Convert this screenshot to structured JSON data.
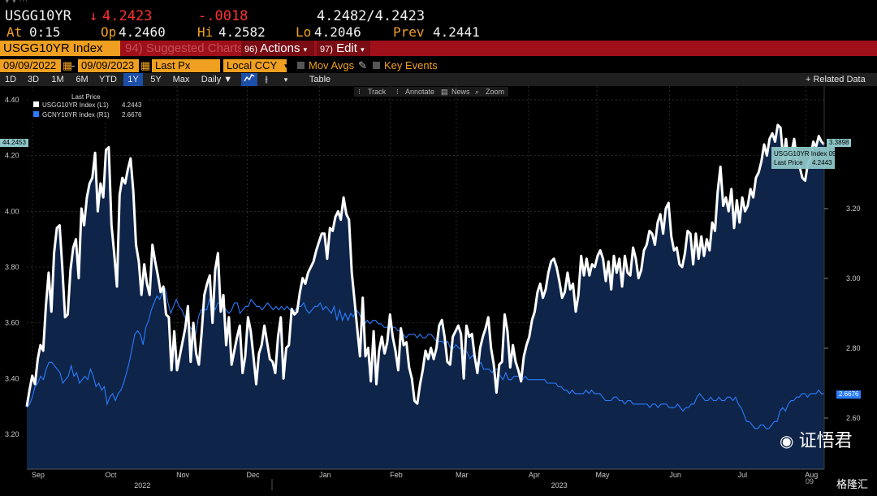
{
  "quote": {
    "ticker": "USGG10YR",
    "last_arrow": "↓",
    "last": "4.2423",
    "change": "-.0018",
    "bid_ask": "4.2482/4.2423",
    "at_label": "At",
    "at_value": "0:15",
    "open_label": "Op",
    "open_value": "4.2460",
    "high_label": "Hi",
    "high_value": "4.2582",
    "low_label": "Lo",
    "low_value": "4.2046",
    "prev_label": "Prev",
    "prev_value": "4.2441"
  },
  "menu": {
    "security": "USGG10YR Index",
    "suggested": "94) Suggested Charts",
    "actions_num": "96)",
    "actions": "Actions",
    "edit_num": "97)",
    "edit": "Edit"
  },
  "options": {
    "start_date": "09/09/2022",
    "end_date": "09/09/2023",
    "field": "Last Px",
    "currency": "Local CCY",
    "mov_avgs": "Mov Avgs",
    "key_events": "Key Events"
  },
  "range": {
    "buttons": [
      "1D",
      "3D",
      "1M",
      "6M",
      "YTD",
      "1Y",
      "5Y",
      "Max",
      "Daily ▼"
    ],
    "active": "1Y",
    "table": "Table",
    "related": "+ Related Data"
  },
  "toolbar": {
    "track": "Track",
    "annotate": "Annotate",
    "news": "News",
    "zoom": "Zoom"
  },
  "colors": {
    "amber": "#f0a020",
    "menu_red": "#a0101a",
    "series_white": "#ffffff",
    "series_blue": "#2a7cff",
    "area_fill": "#0e2448"
  },
  "chart_data": {
    "type": "line",
    "legend_title": "Last Price",
    "series": [
      {
        "name": "USGG10YR Index (L1)",
        "last_value": "4.2443",
        "axis": "left",
        "values": [
          3.3,
          3.36,
          3.41,
          3.38,
          3.47,
          3.52,
          3.5,
          3.66,
          3.78,
          3.64,
          3.85,
          3.94,
          3.95,
          3.8,
          3.62,
          3.63,
          3.79,
          3.87,
          3.9,
          3.76,
          4.01,
          3.95,
          4.05,
          4.1,
          4.12,
          4.21,
          4.0,
          4.1,
          4.05,
          4.22,
          4.23,
          3.95,
          3.85,
          3.73,
          4.06,
          4.12,
          4.1,
          4.15,
          4.19,
          4.07,
          3.88,
          3.82,
          3.7,
          3.81,
          3.74,
          3.7,
          3.88,
          3.82,
          3.77,
          3.71,
          3.73,
          3.63,
          3.62,
          3.43,
          3.57,
          3.43,
          3.48,
          3.53,
          3.58,
          3.66,
          3.46,
          3.6,
          3.49,
          3.45,
          3.56,
          3.7,
          3.74,
          3.77,
          3.6,
          3.79,
          3.85,
          3.64,
          3.7,
          3.52,
          3.62,
          3.45,
          3.5,
          3.55,
          3.59,
          3.42,
          3.48,
          3.62,
          3.57,
          3.48,
          3.38,
          3.49,
          3.52,
          3.59,
          3.53,
          3.47,
          3.46,
          3.42,
          3.55,
          3.62,
          3.4,
          3.51,
          3.52,
          3.65,
          3.63,
          3.64,
          3.71,
          3.76,
          3.74,
          3.78,
          3.8,
          3.82,
          3.86,
          3.89,
          3.92,
          3.92,
          3.83,
          3.94,
          3.93,
          3.98,
          4.0,
          3.97,
          4.05,
          3.99,
          3.97,
          3.78,
          3.68,
          3.58,
          3.48,
          3.69,
          3.48,
          3.51,
          3.39,
          3.57,
          3.38,
          3.5,
          3.55,
          3.49,
          3.53,
          3.63,
          3.55,
          3.5,
          3.43,
          3.58,
          3.52,
          3.53,
          3.44,
          3.4,
          3.32,
          3.31,
          3.38,
          3.43,
          3.5,
          3.47,
          3.51,
          3.47,
          3.51,
          3.59,
          3.61,
          3.55,
          3.46,
          3.45,
          3.55,
          3.57,
          3.59,
          3.56,
          3.4,
          3.59,
          3.55,
          3.56,
          3.48,
          3.42,
          3.51,
          3.55,
          3.58,
          3.62,
          3.51,
          3.45,
          3.35,
          3.45,
          3.46,
          3.63,
          3.57,
          3.44,
          3.52,
          3.46,
          3.43,
          3.39,
          3.48,
          3.52,
          3.55,
          3.61,
          3.64,
          3.71,
          3.74,
          3.69,
          3.72,
          3.78,
          3.82,
          3.83,
          3.8,
          3.75,
          3.69,
          3.71,
          3.78,
          3.72,
          3.74,
          3.64,
          3.7,
          3.84,
          3.77,
          3.83,
          3.77,
          3.81,
          3.8,
          3.84,
          3.86,
          3.83,
          3.75,
          3.82,
          3.72,
          3.84,
          3.78,
          3.83,
          3.73,
          3.84,
          3.78,
          3.77,
          3.87,
          3.83,
          3.76,
          3.79,
          3.86,
          3.88,
          3.93,
          3.92,
          3.88,
          3.96,
          3.99,
          3.92,
          4.01,
          4.03,
          3.91,
          3.86,
          3.87,
          3.81,
          3.8,
          3.85,
          3.93,
          3.92,
          3.81,
          3.92,
          3.83,
          3.91,
          3.84,
          3.9,
          3.86,
          3.96,
          3.93,
          4.07,
          4.16,
          4.02,
          4.05,
          4.0,
          4.08,
          3.94,
          4.04,
          3.96,
          4.05,
          4.0,
          4.02,
          4.08,
          4.05,
          4.12,
          4.14,
          4.18,
          4.24,
          4.2,
          4.26,
          4.28,
          4.25,
          4.31,
          4.3,
          4.18,
          4.26,
          4.17,
          4.21,
          4.26,
          4.18,
          4.16,
          4.12,
          4.11,
          4.17,
          4.19,
          4.25,
          4.23,
          4.27,
          4.25,
          4.24
        ]
      },
      {
        "name": "GCNY10YR Index (R1)",
        "last_value": "2.6676",
        "axis": "right",
        "values": [
          2.63,
          2.64,
          2.66,
          2.69,
          2.7,
          2.72,
          2.71,
          2.74,
          2.76,
          2.76,
          2.75,
          2.74,
          2.73,
          2.7,
          2.71,
          2.72,
          2.75,
          2.72,
          2.73,
          2.7,
          2.71,
          2.72,
          2.71,
          2.74,
          2.72,
          2.69,
          2.7,
          2.68,
          2.69,
          2.64,
          2.66,
          2.67,
          2.65,
          2.67,
          2.68,
          2.7,
          2.73,
          2.76,
          2.8,
          2.84,
          2.85,
          2.84,
          2.81,
          2.86,
          2.88,
          2.91,
          2.93,
          2.95,
          2.94,
          2.96,
          2.97,
          2.93,
          2.9,
          2.92,
          2.94,
          2.92,
          2.91,
          2.89,
          2.88,
          2.86,
          2.85,
          2.84,
          2.89,
          2.91,
          2.91,
          2.91,
          2.94,
          2.93,
          2.91,
          2.93,
          2.93,
          2.92,
          2.91,
          2.9,
          2.91,
          2.93,
          2.93,
          2.9,
          2.91,
          2.92,
          2.92,
          2.94,
          2.93,
          2.92,
          2.92,
          2.91,
          2.92,
          2.93,
          2.92,
          2.91,
          2.92,
          2.91,
          2.92,
          2.91,
          2.92,
          2.91,
          2.9,
          2.91,
          2.92,
          2.92,
          2.93,
          2.91,
          2.9,
          2.91,
          2.92,
          2.92,
          2.93,
          2.91,
          2.92,
          2.91,
          2.9,
          2.92,
          2.88,
          2.91,
          2.88,
          2.9,
          2.88,
          2.9,
          2.89,
          2.91,
          2.9,
          2.88,
          2.87,
          2.88,
          2.87,
          2.88,
          2.88,
          2.87,
          2.87,
          2.86,
          2.86,
          2.86,
          2.86,
          2.86,
          2.85,
          2.85,
          2.84,
          2.83,
          2.84,
          2.84,
          2.84,
          2.83,
          2.84,
          2.83,
          2.83,
          2.84,
          2.84,
          2.83,
          2.82,
          2.82,
          2.82,
          2.81,
          2.82,
          2.8,
          2.8,
          2.81,
          2.8,
          2.8,
          2.79,
          2.79,
          2.77,
          2.78,
          2.77,
          2.75,
          2.76,
          2.74,
          2.74,
          2.74,
          2.73,
          2.74,
          2.74,
          2.72,
          2.71,
          2.73,
          2.71,
          2.71,
          2.72,
          2.72,
          2.72,
          2.71,
          2.72,
          2.71,
          2.71,
          2.71,
          2.71,
          2.71,
          2.71,
          2.71,
          2.7,
          2.7,
          2.7,
          2.7,
          2.69,
          2.69,
          2.68,
          2.68,
          2.67,
          2.68,
          2.67,
          2.67,
          2.67,
          2.67,
          2.68,
          2.67,
          2.68,
          2.67,
          2.67,
          2.67,
          2.66,
          2.65,
          2.65,
          2.65,
          2.66,
          2.66,
          2.65,
          2.65,
          2.64,
          2.65,
          2.65,
          2.64,
          2.64,
          2.64,
          2.64,
          2.64,
          2.64,
          2.63,
          2.64,
          2.64,
          2.63,
          2.64,
          2.64,
          2.64,
          2.63,
          2.63,
          2.63,
          2.64,
          2.63,
          2.62,
          2.63,
          2.63,
          2.64,
          2.64,
          2.66,
          2.67,
          2.66,
          2.65,
          2.65,
          2.66,
          2.65,
          2.65,
          2.66,
          2.65,
          2.65,
          2.66,
          2.66,
          2.65,
          2.66,
          2.64,
          2.63,
          2.61,
          2.59,
          2.59,
          2.58,
          2.57,
          2.57,
          2.58,
          2.58,
          2.57,
          2.57,
          2.58,
          2.59,
          2.59,
          2.62,
          2.63,
          2.62,
          2.64,
          2.65,
          2.65,
          2.66,
          2.66,
          2.67,
          2.67,
          2.66,
          2.67,
          2.67,
          2.67,
          2.68,
          2.67,
          2.67
        ]
      }
    ],
    "x_labels": [
      "Sep",
      "Oct",
      "Nov",
      "Dec",
      "Jan",
      "Feb",
      "Mar",
      "Apr",
      "May",
      "Jun",
      "Jul",
      "Aug"
    ],
    "x_label_pos": [
      0.0294,
      0.1206,
      0.2109,
      0.2989,
      0.3894,
      0.4786,
      0.5609,
      0.6516,
      0.7373,
      0.8286,
      0.9128,
      0.9992
    ],
    "year_labels": [
      "2022",
      "2023"
    ],
    "year_label_pos": [
      0.1602,
      0.6829
    ],
    "y_left": {
      "ticks": [
        "3.20",
        "3.40",
        "3.60",
        "3.80",
        "4.00",
        "4.20",
        "4.40"
      ],
      "range": [
        3.16,
        4.44
      ]
    },
    "y_right": {
      "ticks": [
        "2.60",
        "2.80",
        "3.00",
        "3.20"
      ],
      "range": [
        2.55,
        3.38
      ]
    },
    "left_tag": "44.2453",
    "right_tag_white": "3.3898",
    "right_tag_blue": "2.6676",
    "tooltip": {
      "line1": "USGG10YR Index 09/08/23",
      "line2_label": "Last Price",
      "line2_value": "4.2443"
    },
    "grid": true
  },
  "watermark": {
    "text": "证悟君",
    "sub": "格隆汇",
    "date_tag": "09"
  }
}
